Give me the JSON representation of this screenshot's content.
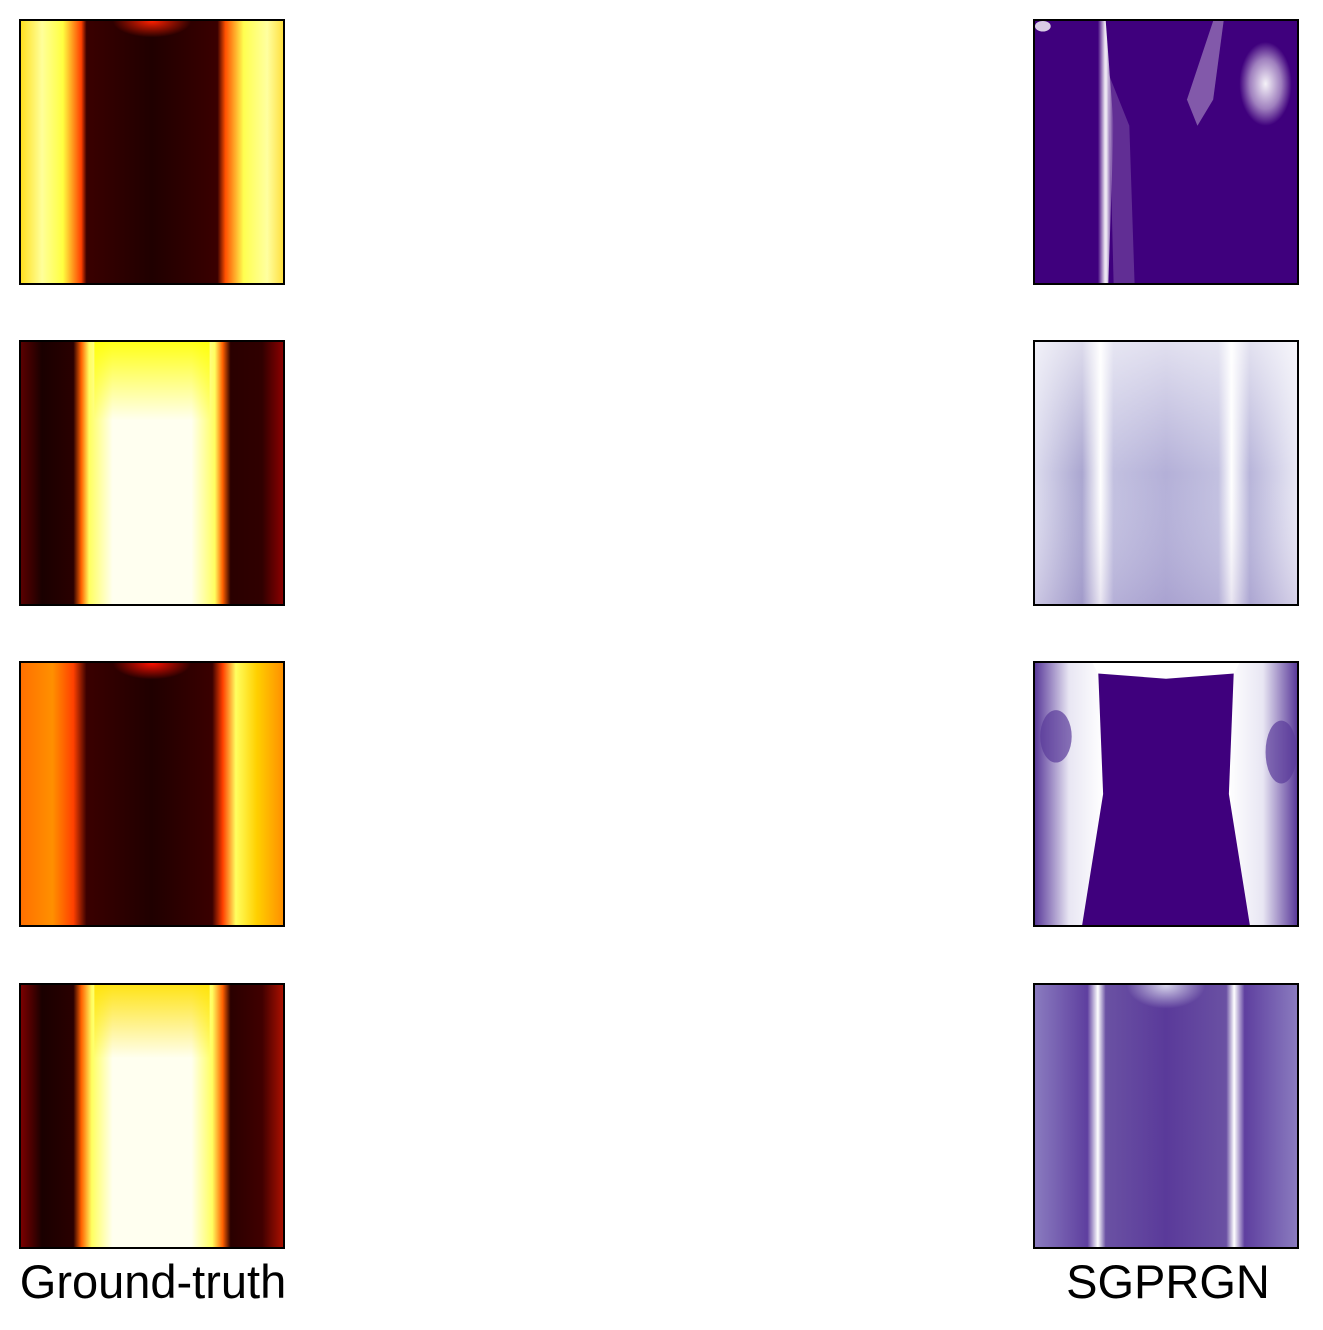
{
  "figure": {
    "columns": [
      {
        "label": "Ground-truth",
        "colormap": "hot"
      },
      {
        "label": "SGPRGN",
        "colormap": "purples"
      }
    ],
    "rows": 4
  }
}
